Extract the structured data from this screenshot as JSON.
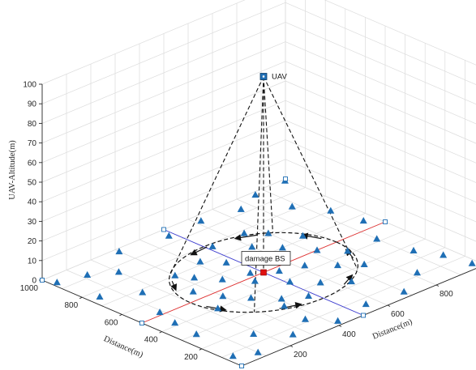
{
  "chart_data": {
    "type": "scatter3d",
    "title": "",
    "xlabel": "Distance(m)",
    "ylabel": "Distance(m)",
    "zlabel": "UAV-Altitude(m)",
    "xlim": [
      0,
      1000
    ],
    "ylim": [
      0,
      1000
    ],
    "zlim": [
      0,
      100
    ],
    "x_ticks": [
      "0",
      "200",
      "400",
      "600",
      "800",
      "1000"
    ],
    "y_ticks": [
      "0",
      "200",
      "400",
      "600",
      "800",
      "1000"
    ],
    "z_ticks": [
      "0",
      "10",
      "20",
      "30",
      "40",
      "50",
      "60",
      "70",
      "80",
      "90",
      "100"
    ],
    "grid": true,
    "uav": {
      "label": "UAV",
      "x": 500,
      "y": 500,
      "z": 100
    },
    "damaged_bs": {
      "label": "damage BS",
      "x": 500,
      "y": 500,
      "z": 0
    },
    "coverage_radius": 300,
    "boundary_squares": [
      {
        "x": 0,
        "y": 0
      },
      {
        "x": 1000,
        "y": 0
      },
      {
        "x": 1000,
        "y": 1000
      },
      {
        "x": 0,
        "y": 1000
      },
      {
        "x": 500,
        "y": 0
      },
      {
        "x": 1000,
        "y": 500
      },
      {
        "x": 500,
        "y": 1000
      },
      {
        "x": 0,
        "y": 500
      }
    ],
    "users_inside": [
      {
        "x": 230,
        "y": 400
      },
      {
        "x": 260,
        "y": 560
      },
      {
        "x": 300,
        "y": 460
      },
      {
        "x": 330,
        "y": 640
      },
      {
        "x": 350,
        "y": 380
      },
      {
        "x": 380,
        "y": 560
      },
      {
        "x": 410,
        "y": 300
      },
      {
        "x": 420,
        "y": 720
      },
      {
        "x": 440,
        "y": 470
      },
      {
        "x": 470,
        "y": 650
      },
      {
        "x": 480,
        "y": 250
      },
      {
        "x": 510,
        "y": 380
      },
      {
        "x": 520,
        "y": 780
      },
      {
        "x": 560,
        "y": 560
      },
      {
        "x": 570,
        "y": 300
      },
      {
        "x": 600,
        "y": 680
      },
      {
        "x": 620,
        "y": 440
      },
      {
        "x": 640,
        "y": 230
      },
      {
        "x": 660,
        "y": 600
      },
      {
        "x": 690,
        "y": 360
      },
      {
        "x": 700,
        "y": 720
      },
      {
        "x": 720,
        "y": 500
      },
      {
        "x": 750,
        "y": 300
      },
      {
        "x": 760,
        "y": 620
      },
      {
        "x": 780,
        "y": 420
      },
      {
        "x": 470,
        "y": 530
      },
      {
        "x": 540,
        "y": 470
      },
      {
        "x": 380,
        "y": 250
      },
      {
        "x": 300,
        "y": 700
      },
      {
        "x": 650,
        "y": 780
      }
    ],
    "users_outside": [
      {
        "x": 30,
        "y": 80
      },
      {
        "x": 60,
        "y": 300
      },
      {
        "x": 90,
        "y": 520
      },
      {
        "x": 40,
        "y": 760
      },
      {
        "x": 120,
        "y": 920
      },
      {
        "x": 180,
        "y": 160
      },
      {
        "x": 150,
        "y": 680
      },
      {
        "x": 260,
        "y": 60
      },
      {
        "x": 300,
        "y": 980
      },
      {
        "x": 360,
        "y": 120
      },
      {
        "x": 420,
        "y": 30
      },
      {
        "x": 480,
        "y": 950
      },
      {
        "x": 560,
        "y": 60
      },
      {
        "x": 620,
        "y": 960
      },
      {
        "x": 700,
        "y": 40
      },
      {
        "x": 760,
        "y": 930
      },
      {
        "x": 820,
        "y": 120
      },
      {
        "x": 880,
        "y": 820
      },
      {
        "x": 920,
        "y": 260
      },
      {
        "x": 960,
        "y": 560
      },
      {
        "x": 940,
        "y": 700
      },
      {
        "x": 860,
        "y": 980
      },
      {
        "x": 980,
        "y": 40
      },
      {
        "x": 100,
        "y": 40
      },
      {
        "x": 200,
        "y": 860
      },
      {
        "x": 900,
        "y": 420
      },
      {
        "x": 20,
        "y": 950
      },
      {
        "x": 990,
        "y": 990
      },
      {
        "x": 70,
        "y": 420
      },
      {
        "x": 960,
        "y": 160
      }
    ],
    "colors": {
      "users": "#1f6fb5",
      "uav": "#1f6fb5",
      "damaged_bs": "#e01010",
      "line_x": "#e03030",
      "line_y": "#3a3ad0",
      "dashed": "#111111",
      "grid": "#dcdcdc",
      "axis": "#262626"
    }
  }
}
